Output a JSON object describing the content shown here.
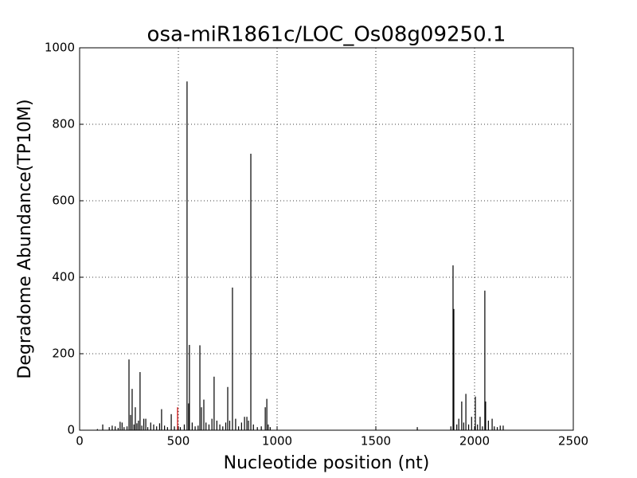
{
  "chart_data": {
    "type": "bar",
    "title": "osa-miR1861c/LOC_Os08g09250.1",
    "xlabel": "Nucleotide position (nt)",
    "ylabel": "Degradome Abundance(TP10M)",
    "xlim": [
      0,
      2500
    ],
    "xticks": [
      0,
      500,
      1000,
      1500,
      2000,
      2500
    ],
    "ylim": [
      0,
      1000
    ],
    "yticks": [
      0,
      200,
      400,
      600,
      800,
      1000
    ],
    "grid": true,
    "series": [
      {
        "color": "#000000",
        "x": [
          90,
          117,
          150,
          165,
          180,
          195,
          205,
          215,
          225,
          240,
          250,
          258,
          266,
          275,
          282,
          290,
          298,
          306,
          315,
          325,
          335,
          345,
          360,
          375,
          390,
          405,
          415,
          430,
          445,
          464,
          480,
          510,
          530,
          544,
          552,
          556,
          570,
          585,
          600,
          609,
          617,
          629,
          640,
          655,
          670,
          681,
          695,
          710,
          725,
          740,
          750,
          760,
          774,
          790,
          805,
          820,
          835,
          847,
          855,
          867,
          880,
          900,
          920,
          940,
          948,
          955,
          965,
          1710,
          1880,
          1891,
          1895,
          1910,
          1920,
          1935,
          1945,
          1956,
          1970,
          1985,
          2004,
          2015,
          2028,
          2040,
          2052,
          2056,
          2070,
          2089,
          2100,
          2115,
          2130,
          2145
        ],
        "values": [
          3,
          15,
          8,
          12,
          10,
          6,
          22,
          20,
          8,
          10,
          185,
          40,
          108,
          15,
          60,
          18,
          25,
          152,
          12,
          30,
          30,
          8,
          20,
          15,
          10,
          18,
          55,
          12,
          8,
          42,
          10,
          8,
          15,
          912,
          70,
          223,
          20,
          10,
          12,
          222,
          60,
          80,
          20,
          15,
          30,
          140,
          25,
          15,
          10,
          20,
          113,
          25,
          373,
          30,
          10,
          20,
          35,
          35,
          25,
          723,
          15,
          8,
          10,
          60,
          82,
          15,
          8,
          8,
          10,
          431,
          317,
          15,
          30,
          75,
          20,
          95,
          15,
          35,
          88,
          15,
          35,
          10,
          365,
          75,
          25,
          30,
          10,
          8,
          12,
          12
        ]
      },
      {
        "color": "#cc0000",
        "x": [
          496
        ],
        "values": [
          60
        ]
      }
    ]
  }
}
